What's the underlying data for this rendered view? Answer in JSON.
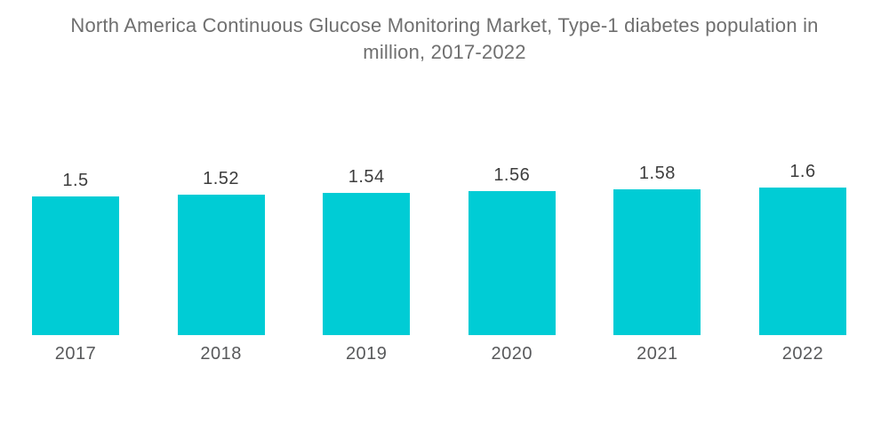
{
  "header": {
    "line1": "North America Continuous Glucose Monitoring Market, Type-1 diabetes population in",
    "line2": "million, 2017-2022"
  },
  "colors": {
    "background": "#ffffff",
    "bar": "#00ccd5",
    "title_text": "#6f6f6f",
    "value_label_text": "#3d3d3d",
    "axis_label_text": "#58595b"
  },
  "chart_data": {
    "type": "bar",
    "title": "North America Continuous Glucose Monitoring Market, Type-1 diabetes population in million, 2017-2022",
    "categories": [
      "2017",
      "2018",
      "2019",
      "2020",
      "2021",
      "2022"
    ],
    "values": [
      1.5,
      1.52,
      1.54,
      1.56,
      1.58,
      1.6
    ],
    "value_labels": [
      "1.5",
      "1.52",
      "1.54",
      "1.56",
      "1.58",
      "1.6"
    ],
    "xlabel": "",
    "ylabel": "",
    "ylim": [
      0,
      1.6
    ],
    "grid": false,
    "legend": "none",
    "data_labels_position": "above-bar",
    "bar_color": "#00ccd5"
  }
}
